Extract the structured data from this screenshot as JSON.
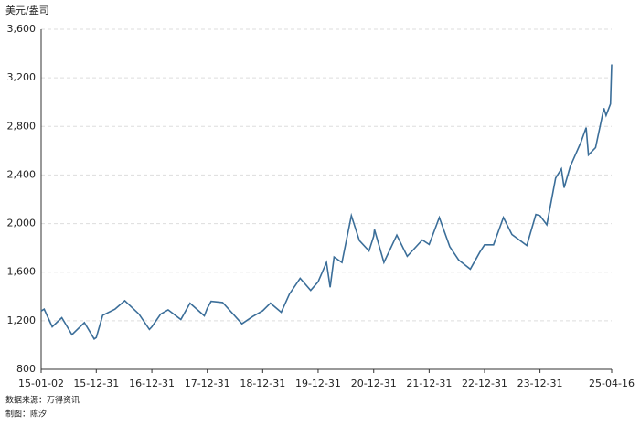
{
  "chart_data": {
    "type": "line",
    "y_label": "美元/盎司",
    "source": "数据来源：万得资讯",
    "author": "制图：陈汐",
    "x": [
      "15-01-02",
      "15-01-22",
      "15-03-16",
      "15-05-18",
      "15-07-24",
      "15-10-14",
      "15-12-17",
      "15-12-31",
      "16-02-11",
      "16-05-02",
      "16-07-06",
      "16-10-07",
      "16-12-15",
      "16-12-31",
      "17-02-27",
      "17-04-17",
      "17-07-10",
      "17-09-08",
      "17-12-12",
      "17-12-31",
      "18-01-25",
      "18-04-11",
      "18-08-16",
      "18-10-26",
      "18-12-31",
      "19-02-20",
      "19-05-02",
      "19-06-25",
      "19-09-04",
      "19-11-12",
      "19-12-31",
      "20-02-24",
      "20-03-19",
      "20-04-14",
      "20-06-05",
      "20-08-06",
      "20-09-28",
      "20-11-30",
      "20-12-31",
      "21-01-05",
      "21-03-08",
      "21-06-01",
      "21-08-09",
      "21-11-16",
      "21-12-31",
      "22-03-08",
      "22-05-16",
      "22-07-14",
      "22-09-28",
      "22-11-30",
      "22-12-31",
      "23-02-28",
      "23-05-04",
      "23-06-29",
      "23-10-05",
      "23-12-04",
      "23-12-31",
      "24-02-14",
      "24-04-12",
      "24-05-20",
      "24-06-07",
      "24-07-17",
      "24-09-26",
      "24-10-30",
      "24-11-14",
      "24-12-31",
      "25-02-24",
      "25-03-10",
      "25-04-08",
      "25-04-16"
    ],
    "series": [
      {
        "color": "#3b6e99",
        "values": [
          1280,
          1295,
          1150,
          1225,
          1085,
          1185,
          1050,
          1062,
          1245,
          1295,
          1365,
          1255,
          1128,
          1150,
          1255,
          1290,
          1210,
          1345,
          1240,
          1303,
          1360,
          1350,
          1175,
          1235,
          1282,
          1345,
          1270,
          1420,
          1550,
          1450,
          1520,
          1680,
          1475,
          1725,
          1680,
          2065,
          1860,
          1775,
          1895,
          1950,
          1680,
          1905,
          1730,
          1865,
          1828,
          2050,
          1810,
          1700,
          1625,
          1765,
          1825,
          1825,
          2050,
          1910,
          1820,
          2075,
          2065,
          1990,
          2375,
          2450,
          2295,
          2470,
          2670,
          2790,
          2565,
          2625,
          2950,
          2890,
          2985,
          3310
        ]
      }
    ],
    "xlim": [
      "15-01-02",
      "25-04-16"
    ],
    "xticks": [
      "15-01-02",
      "15-12-31",
      "16-12-31",
      "17-12-31",
      "18-12-31",
      "19-12-31",
      "20-12-31",
      "21-12-31",
      "22-12-31",
      "23-12-31",
      "25-04-16"
    ],
    "ylim": [
      800,
      3600
    ],
    "yticks": [
      800,
      {
        "value": 1200,
        "label": "1,200"
      },
      {
        "value": 1600,
        "label": "1,600"
      },
      {
        "value": 2000,
        "label": "2,000"
      },
      {
        "value": 2400,
        "label": "2,400"
      },
      {
        "value": 2800,
        "label": "2,800"
      },
      {
        "value": 3200,
        "label": "3,200"
      },
      {
        "value": 3600,
        "label": "3,600"
      }
    ],
    "grid": true
  }
}
